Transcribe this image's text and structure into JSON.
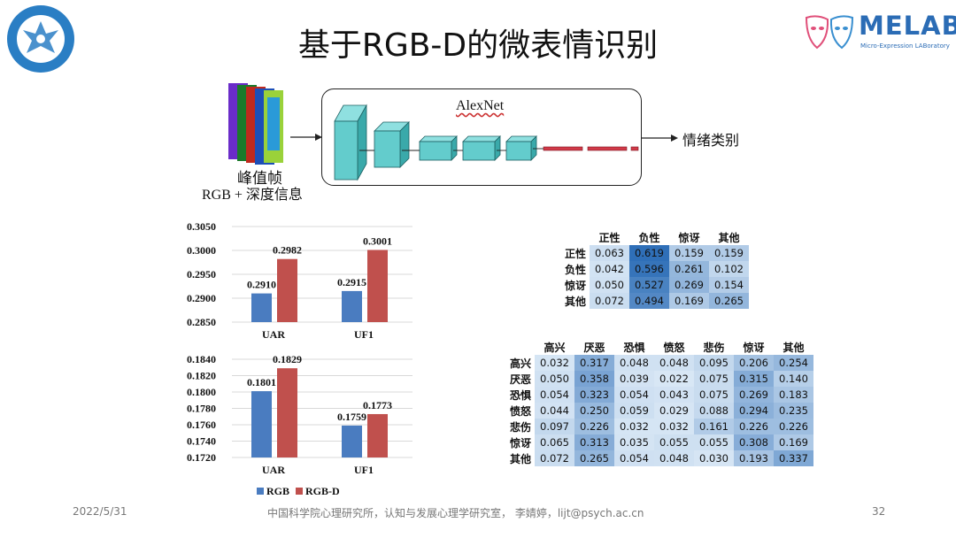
{
  "title": "基于RGB-D的微表情识别",
  "logo_right": {
    "name": "MELAB",
    "subtitle": "Micro-Expression LABoratory"
  },
  "logo_left": {
    "text": "INSTITUTE OF PSYCHOLOGY CAS",
    "year": "1929"
  },
  "diagram": {
    "network_label": "AlexNet",
    "input_label_1": "峰值帧",
    "input_label_2": "RGB + 深度信息",
    "output_label": "情绪类别"
  },
  "chart_data": [
    {
      "type": "bar",
      "categories": [
        "UAR",
        "UF1"
      ],
      "series": [
        {
          "name": "RGB",
          "values": [
            0.291,
            0.2915
          ]
        },
        {
          "name": "RGB-D",
          "values": [
            0.2982,
            0.3001
          ]
        }
      ],
      "data_labels": [
        [
          "0.2910",
          "0.2915"
        ],
        [
          "0.2982",
          "0.3001"
        ]
      ],
      "yticks": [
        "0.3050",
        "0.3000",
        "0.2950",
        "0.2900",
        "0.2850"
      ],
      "ylim": [
        0.285,
        0.305
      ]
    },
    {
      "type": "bar",
      "categories": [
        "UAR",
        "UF1"
      ],
      "series": [
        {
          "name": "RGB",
          "values": [
            0.1801,
            0.1759
          ]
        },
        {
          "name": "RGB-D",
          "values": [
            0.1829,
            0.1773
          ]
        }
      ],
      "data_labels": [
        [
          "0.1801",
          "0.1759"
        ],
        [
          "0.1829",
          "0.1773"
        ]
      ],
      "yticks": [
        "0.1840",
        "0.1820",
        "0.1800",
        "0.1780",
        "0.1760",
        "0.1740",
        "0.1720"
      ],
      "ylim": [
        0.172,
        0.184
      ],
      "legend": [
        "RGB",
        "RGB-D"
      ],
      "legend_position": "bottom"
    },
    {
      "type": "heatmap",
      "columns": [
        "正性",
        "负性",
        "惊讶",
        "其他"
      ],
      "rows": [
        "正性",
        "负性",
        "惊讶",
        "其他"
      ],
      "values": [
        [
          "0.063",
          "0.619",
          "0.159",
          "0.159"
        ],
        [
          "0.042",
          "0.596",
          "0.261",
          "0.102"
        ],
        [
          "0.050",
          "0.527",
          "0.269",
          "0.154"
        ],
        [
          "0.072",
          "0.494",
          "0.169",
          "0.265"
        ]
      ]
    },
    {
      "type": "heatmap",
      "columns": [
        "高兴",
        "厌恶",
        "恐惧",
        "愤怒",
        "悲伤",
        "惊讶",
        "其他"
      ],
      "rows": [
        "高兴",
        "厌恶",
        "恐惧",
        "愤怒",
        "悲伤",
        "惊讶",
        "其他"
      ],
      "values": [
        [
          "0.032",
          "0.317",
          "0.048",
          "0.048",
          "0.095",
          "0.206",
          "0.254"
        ],
        [
          "0.050",
          "0.358",
          "0.039",
          "0.022",
          "0.075",
          "0.315",
          "0.140"
        ],
        [
          "0.054",
          "0.323",
          "0.054",
          "0.043",
          "0.075",
          "0.269",
          "0.183"
        ],
        [
          "0.044",
          "0.250",
          "0.059",
          "0.029",
          "0.088",
          "0.294",
          "0.235"
        ],
        [
          "0.097",
          "0.226",
          "0.032",
          "0.032",
          "0.161",
          "0.226",
          "0.226"
        ],
        [
          "0.065",
          "0.313",
          "0.035",
          "0.055",
          "0.055",
          "0.308",
          "0.169"
        ],
        [
          "0.072",
          "0.265",
          "0.054",
          "0.048",
          "0.030",
          "0.193",
          "0.337"
        ]
      ]
    }
  ],
  "colors": {
    "rgb": "#4a7cc0",
    "rgbd": "#c0504d",
    "heat_low": "#deebf7",
    "heat_high": "#2f6fb8"
  },
  "footer": {
    "date": "2022/5/31",
    "org": "中国科学院心理研究所，认知与发展心理学研究室，  李婧婷，lijt@psych.ac.cn",
    "page": "32"
  }
}
